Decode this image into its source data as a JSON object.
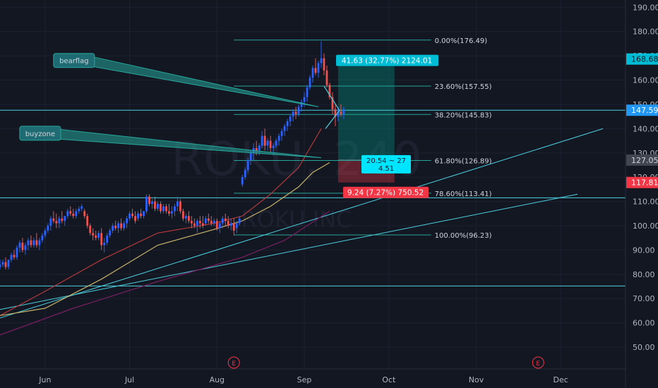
{
  "chart_data": {
    "type": "candlestick",
    "watermark": {
      "symbol": "ROKU, 240",
      "name": "ROKU INC"
    },
    "y_axis": {
      "range": [
        41,
        193
      ],
      "ticks": [
        190,
        180,
        170,
        160,
        150,
        140,
        130,
        120,
        110,
        100,
        90,
        80,
        70,
        60,
        50
      ]
    },
    "x_axis": {
      "ticks": [
        {
          "label": "Jun",
          "x": 0
        },
        {
          "label": "Jul",
          "x": 30
        },
        {
          "label": "Aug",
          "x": 61
        },
        {
          "label": "Sep",
          "x": 92
        },
        {
          "label": "Oct",
          "x": 122
        },
        {
          "label": "Nov",
          "x": 153
        },
        {
          "label": "Dec",
          "x": 183
        }
      ],
      "day_range": [
        -16,
        206
      ]
    },
    "price_badges": [
      {
        "value": "168.68",
        "price": 168.68,
        "color": "#00bcd4",
        "text_color": "#131722"
      },
      {
        "value": "147.59",
        "price": 147.59,
        "color": "#2196f3",
        "text_color": "#ffffff"
      },
      {
        "value": "127.05",
        "price": 127.05,
        "color": "#434651",
        "text_color": "#d1d4dc"
      },
      {
        "value": "117.81",
        "price": 117.81,
        "color": "#f23645",
        "text_color": "#ffffff"
      }
    ],
    "earnings_markers": [
      {
        "label": "E",
        "x": 67
      },
      {
        "label": "E",
        "x": 175
      }
    ],
    "fibonacci": {
      "x_start": 67,
      "x_end": 137,
      "levels": [
        {
          "label": "0.00%(176.49)",
          "price": 176.49
        },
        {
          "label": "23.60%(157.55)",
          "price": 157.55
        },
        {
          "label": "38.20%(145.83)",
          "price": 145.83
        },
        {
          "label": "61.80%(126.89)",
          "price": 126.89
        },
        {
          "label": "78.60%(113.41)",
          "price": 113.41
        },
        {
          "label": "100.00%(96.23)",
          "price": 96.23
        }
      ]
    },
    "position": {
      "x_start": 104,
      "x_end": 124,
      "entry": 127.05,
      "target": 168.68,
      "stop": 117.81,
      "target_label": "41.63 (32.77%) 2124.01",
      "stop_label": "9.24 (7.27%) 750.52",
      "ratio_label": [
        "20.54 ~ 27",
        "4.51"
      ]
    },
    "annotations": [
      {
        "text": "bearflag",
        "x": 3,
        "y": 171,
        "tip_x": 97,
        "tip_y": 149
      },
      {
        "text": "buyzone",
        "x": -9,
        "y": 141,
        "tip_x": 98,
        "tip_y": 128
      }
    ],
    "horizontal_lines": [
      147.59,
      111.5,
      75.2
    ],
    "trendlines": [
      {
        "x1": -16,
        "y1": 62,
        "x2": 198,
        "y2": 140
      },
      {
        "x1": -16,
        "y1": 65.5,
        "x2": 189,
        "y2": 113
      }
    ],
    "moving_averages": [
      {
        "color": "#b33a3a",
        "points": [
          [
            -16,
            63
          ],
          [
            0,
            73
          ],
          [
            20,
            86
          ],
          [
            40,
            97
          ],
          [
            60,
            101
          ],
          [
            70,
            104
          ],
          [
            80,
            113
          ],
          [
            90,
            124
          ],
          [
            95,
            134
          ],
          [
            98,
            140
          ]
        ]
      },
      {
        "color": "#c8b26a",
        "points": [
          [
            -16,
            63
          ],
          [
            0,
            66
          ],
          [
            20,
            78
          ],
          [
            40,
            92
          ],
          [
            60,
            98.5
          ],
          [
            70,
            102
          ],
          [
            80,
            108
          ],
          [
            90,
            116
          ],
          [
            95,
            122
          ],
          [
            101,
            126
          ]
        ]
      },
      {
        "color": "#7b1f63",
        "points": [
          [
            -16,
            55
          ],
          [
            10,
            66
          ],
          [
            40,
            77
          ],
          [
            70,
            87
          ],
          [
            85,
            94
          ],
          [
            101,
            106
          ]
        ]
      }
    ],
    "candles": [
      [
        -16,
        83,
        86,
        82,
        84
      ],
      [
        -15,
        84,
        86,
        83,
        85
      ],
      [
        -14,
        85,
        87,
        82,
        83
      ],
      [
        -13,
        83,
        86,
        82,
        86
      ],
      [
        -12,
        86,
        89,
        85,
        88
      ],
      [
        -11,
        88,
        90,
        86,
        87
      ],
      [
        -10,
        87,
        92,
        86,
        91
      ],
      [
        -9,
        91,
        94,
        89,
        93
      ],
      [
        -8,
        93,
        95,
        89,
        90
      ],
      [
        -7,
        90,
        93,
        88,
        92
      ],
      [
        -6,
        92,
        95,
        90,
        94
      ],
      [
        -5,
        94,
        96,
        91,
        92
      ],
      [
        -4,
        92,
        95,
        91,
        94
      ],
      [
        -3,
        94,
        97,
        91,
        92
      ],
      [
        -2,
        92,
        95,
        90,
        94
      ],
      [
        -1,
        94,
        97,
        93,
        96
      ],
      [
        0,
        96,
        99,
        95,
        98
      ],
      [
        1,
        98,
        101,
        97,
        100
      ],
      [
        2,
        100,
        104,
        98,
        103
      ],
      [
        3,
        103,
        106,
        101,
        102
      ],
      [
        4,
        102,
        105,
        99,
        101
      ],
      [
        5,
        101,
        104,
        99,
        103
      ],
      [
        6,
        103,
        106,
        101,
        102
      ],
      [
        7,
        102,
        104,
        100,
        104
      ],
      [
        8,
        104,
        107,
        103,
        106
      ],
      [
        9,
        106,
        108,
        104,
        105
      ],
      [
        10,
        105,
        107,
        103,
        104
      ],
      [
        11,
        104,
        107,
        103,
        106
      ],
      [
        12,
        106,
        108,
        105,
        107
      ],
      [
        13,
        107,
        109,
        106,
        108
      ],
      [
        14,
        106,
        107,
        103,
        104
      ],
      [
        15,
        104,
        105,
        99,
        100
      ],
      [
        16,
        100,
        101,
        96,
        97
      ],
      [
        17,
        97,
        99,
        94,
        96
      ],
      [
        18,
        96,
        98,
        94,
        95
      ],
      [
        19,
        95,
        98,
        94,
        97
      ],
      [
        20,
        97,
        99,
        90,
        92
      ],
      [
        21,
        92,
        95,
        89,
        93
      ],
      [
        22,
        93,
        97,
        92,
        96
      ],
      [
        23,
        96,
        99,
        95,
        98
      ],
      [
        24,
        98,
        101,
        97,
        100
      ],
      [
        25,
        100,
        102,
        98,
        99
      ],
      [
        26,
        99,
        102,
        97,
        101
      ],
      [
        27,
        101,
        103,
        98,
        99
      ],
      [
        28,
        99,
        102,
        98,
        101
      ],
      [
        29,
        101,
        104,
        99,
        103
      ],
      [
        30,
        103,
        106,
        102,
        105
      ],
      [
        31,
        105,
        107,
        103,
        104
      ],
      [
        32,
        104,
        106,
        101,
        102
      ],
      [
        33,
        103,
        106,
        102,
        105
      ],
      [
        34,
        105,
        107,
        103,
        104
      ],
      [
        35,
        104,
        106,
        103,
        106
      ],
      [
        36,
        106,
        113,
        105,
        112
      ],
      [
        37,
        112,
        113,
        108,
        109
      ],
      [
        38,
        109,
        111,
        107,
        110
      ],
      [
        39,
        110,
        112,
        106,
        107
      ],
      [
        40,
        107,
        110,
        106,
        109
      ],
      [
        41,
        109,
        110,
        105,
        106
      ],
      [
        42,
        106,
        109,
        105,
        108
      ],
      [
        43,
        108,
        109,
        105,
        106
      ],
      [
        44,
        106,
        109,
        104,
        105
      ],
      [
        45,
        105,
        108,
        103,
        106
      ],
      [
        46,
        106,
        109,
        104,
        108
      ],
      [
        47,
        108,
        112,
        106,
        110
      ],
      [
        48,
        110,
        111,
        105,
        106
      ],
      [
        49,
        106,
        107,
        102,
        103
      ],
      [
        50,
        103,
        105,
        101,
        104
      ],
      [
        51,
        104,
        106,
        101,
        102
      ],
      [
        52,
        102,
        104,
        99,
        101
      ],
      [
        53,
        101,
        103,
        99,
        100
      ],
      [
        54,
        100,
        103,
        97,
        102
      ],
      [
        55,
        102,
        104,
        99,
        101
      ],
      [
        56,
        101,
        104,
        99,
        100
      ],
      [
        57,
        101,
        104,
        100,
        103
      ],
      [
        58,
        103,
        105,
        101,
        102
      ],
      [
        59,
        102,
        104,
        100,
        101
      ],
      [
        60,
        101,
        103,
        100,
        102
      ],
      [
        61,
        102,
        103,
        98,
        99
      ],
      [
        62,
        99,
        102,
        97,
        101
      ],
      [
        63,
        101,
        104,
        99,
        103
      ],
      [
        64,
        103,
        105,
        100,
        102
      ],
      [
        65,
        102,
        104,
        99,
        100
      ],
      [
        66,
        100,
        103,
        98,
        101
      ],
      [
        67,
        101,
        103,
        96,
        98
      ],
      [
        68,
        99,
        102,
        97,
        101
      ],
      [
        69,
        101,
        104,
        100,
        103
      ],
      [
        70,
        117,
        121,
        116,
        120
      ],
      [
        71,
        120,
        124,
        119,
        123
      ],
      [
        72,
        123,
        128,
        122,
        127
      ],
      [
        73,
        127,
        131,
        125,
        130
      ],
      [
        74,
        130,
        134,
        127,
        132
      ],
      [
        75,
        132,
        135,
        129,
        131
      ],
      [
        76,
        131,
        134,
        129,
        133
      ],
      [
        77,
        133,
        139,
        132,
        137
      ],
      [
        78,
        137,
        140,
        131,
        133
      ],
      [
        79,
        133,
        136,
        131,
        135
      ],
      [
        80,
        135,
        137,
        130,
        132
      ],
      [
        81,
        132,
        134,
        129,
        133
      ],
      [
        82,
        133,
        136,
        132,
        135
      ],
      [
        83,
        135,
        138,
        133,
        137
      ],
      [
        84,
        137,
        140,
        135,
        139
      ],
      [
        85,
        139,
        142,
        137,
        141
      ],
      [
        86,
        141,
        144,
        139,
        143
      ],
      [
        87,
        143,
        146,
        141,
        145
      ],
      [
        88,
        145,
        148,
        143,
        147
      ],
      [
        89,
        147,
        149,
        144,
        146
      ],
      [
        90,
        146,
        150,
        145,
        149
      ],
      [
        91,
        149,
        152,
        147,
        151
      ],
      [
        92,
        151,
        155,
        149,
        153
      ],
      [
        93,
        153,
        158,
        151,
        157
      ],
      [
        94,
        157,
        162,
        156,
        161
      ],
      [
        95,
        161,
        166,
        159,
        165
      ],
      [
        96,
        165,
        169,
        162,
        163
      ],
      [
        97,
        163,
        168,
        161,
        167
      ],
      [
        98,
        167,
        176,
        165,
        169
      ],
      [
        99,
        169,
        171,
        162,
        164
      ],
      [
        100,
        164,
        166,
        157,
        158
      ],
      [
        101,
        158,
        159,
        152,
        153
      ],
      [
        102,
        153,
        155,
        146,
        148
      ],
      [
        103,
        148,
        150,
        141,
        145
      ],
      [
        104,
        145,
        149,
        143,
        147
      ],
      [
        105,
        147,
        150,
        145,
        146
      ],
      [
        106,
        146,
        149,
        144,
        148
      ]
    ]
  }
}
